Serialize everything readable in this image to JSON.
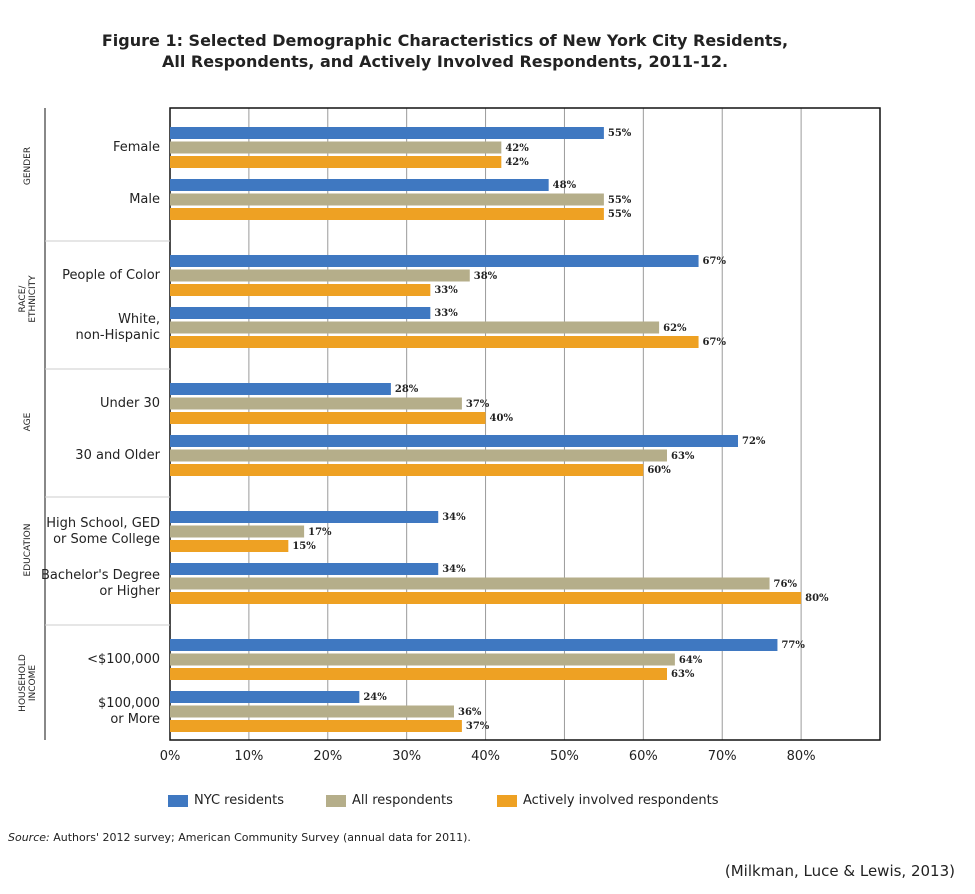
{
  "chart_data": {
    "type": "bar",
    "title": "Figure 1: Selected Demographic Characteristics of New York City Residents,\nAll Respondents, and Actively Involved Respondents, 2011-12.",
    "groups": [
      {
        "name": "GENDER",
        "categories": [
          "Female",
          "Male"
        ]
      },
      {
        "name": "RACE/\nETHNICITY",
        "categories": [
          "People of Color",
          "White,\nnon-Hispanic"
        ]
      },
      {
        "name": "AGE",
        "categories": [
          "Under 30",
          "30 and Older"
        ]
      },
      {
        "name": "EDUCATION",
        "categories": [
          "High School, GED\nor Some College",
          "Bachelor's Degree\nor Higher"
        ]
      },
      {
        "name": "HOUSEHOLD\nINCOME",
        "categories": [
          "<$100,000",
          "$100,000\nor More"
        ]
      }
    ],
    "series": [
      {
        "name": "NYC residents",
        "color": "#3f78c1",
        "values": [
          55,
          48,
          67,
          33,
          28,
          72,
          34,
          34,
          77,
          24
        ],
        "value_labels": [
          "55%",
          "48%",
          "67%",
          "33%",
          "28%",
          "72%",
          "34%",
          "34%",
          "77%",
          "24%"
        ]
      },
      {
        "name": "All respondents",
        "color": "#b5ae8a",
        "values": [
          42,
          55,
          38,
          62,
          37,
          63,
          17,
          76,
          64,
          36
        ],
        "value_labels": [
          "42%",
          "55%",
          "38%",
          "62%",
          "37%",
          "63%",
          "17%",
          "76%",
          "64%",
          "36%"
        ]
      },
      {
        "name": "Actively involved respondents",
        "color": "#eea123",
        "values": [
          42,
          55,
          33,
          67,
          40,
          60,
          15,
          80,
          63,
          37
        ],
        "value_labels": [
          "42%",
          "55%",
          "33%",
          "67%",
          "40%",
          "60%",
          "15%",
          "80%",
          "63%",
          "37%"
        ]
      }
    ],
    "xlim": [
      0,
      90
    ],
    "xticks": [
      {
        "value": 0,
        "label": "0%"
      },
      {
        "value": 10,
        "label": "10%"
      },
      {
        "value": 20,
        "label": "20%"
      },
      {
        "value": 30,
        "label": "30%"
      },
      {
        "value": 40,
        "label": "40%"
      },
      {
        "value": 50,
        "label": "50%"
      },
      {
        "value": 60,
        "label": "60%"
      },
      {
        "value": 70,
        "label": "70%"
      },
      {
        "value": 80,
        "label": "80%"
      }
    ],
    "grid": true,
    "legend": "bottom",
    "source_label": "Source:",
    "source": "Authors' 2012 survey; American Community Survey (annual data for 2011).",
    "citation": "(Milkman, Luce & Lewis, 2013)"
  }
}
